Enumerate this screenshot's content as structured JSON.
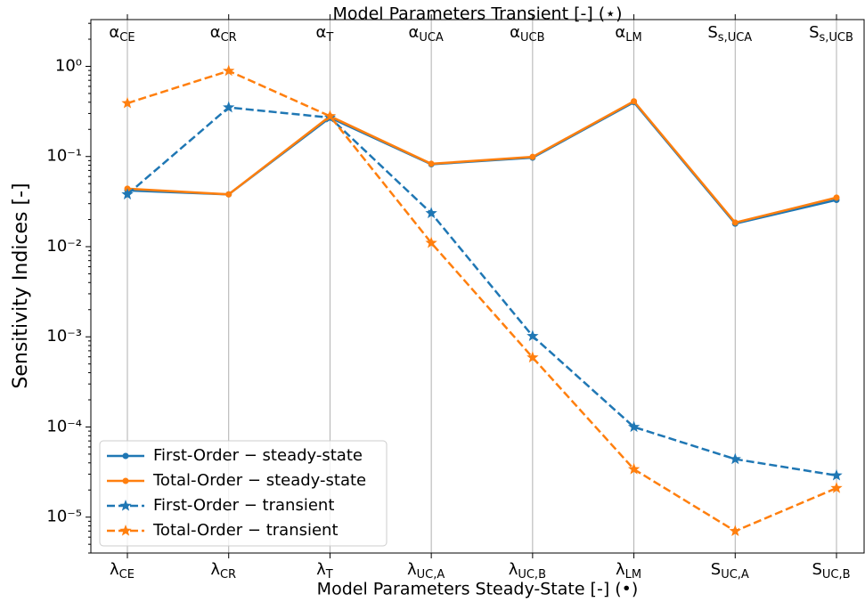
{
  "chart_data": {
    "type": "line",
    "xlabel": "Model Parameters Steady-State [-] (•)",
    "x2label": "Model Parameters Transient [-] (⋆)",
    "ylabel": "Sensitivity Indices [-]",
    "categories": [
      "λCE",
      "λCR",
      "λT",
      "λUC,A",
      "λUC,B",
      "λLM",
      "SUC,A",
      "SUC,B"
    ],
    "categories_top": [
      "αCE",
      "αCR",
      "αT",
      "αUCA",
      "αUCB",
      "αLM",
      "Ss,UCA",
      "Ss,UCB"
    ],
    "log_y": true,
    "ylim": [
      4e-06,
      3.3
    ],
    "yticks": [
      {
        "value": 1e-05,
        "label": "10⁻⁵"
      },
      {
        "value": 0.0001,
        "label": "10⁻⁴"
      },
      {
        "value": 0.001,
        "label": "10⁻³"
      },
      {
        "value": 0.01,
        "label": "10⁻²"
      },
      {
        "value": 0.1,
        "label": "10⁻¹"
      },
      {
        "value": 1,
        "label": "10⁰"
      }
    ],
    "grid_x": true,
    "legend_loc": "lower left",
    "series": [
      {
        "name": "First-Order − steady-state",
        "color": "#1f77b4",
        "marker": "circle",
        "dashed": false,
        "values": [
          0.042,
          0.038,
          0.27,
          0.082,
          0.097,
          0.4,
          0.018,
          0.033
        ]
      },
      {
        "name": "Total-Order − steady-state",
        "color": "#ff7f0e",
        "marker": "circle",
        "dashed": false,
        "values": [
          0.044,
          0.038,
          0.28,
          0.083,
          0.099,
          0.41,
          0.0185,
          0.035
        ]
      },
      {
        "name": "First-Order − transient",
        "color": "#1f77b4",
        "marker": "star",
        "dashed": true,
        "values": [
          0.038,
          0.35,
          0.27,
          0.0235,
          0.00102,
          0.0001,
          4.4e-05,
          2.9e-05
        ]
      },
      {
        "name": "Total-Order − transient",
        "color": "#ff7f0e",
        "marker": "star",
        "dashed": true,
        "values": [
          0.39,
          0.89,
          0.28,
          0.011,
          0.00059,
          3.4e-05,
          7e-06,
          2.1e-05
        ]
      }
    ]
  }
}
